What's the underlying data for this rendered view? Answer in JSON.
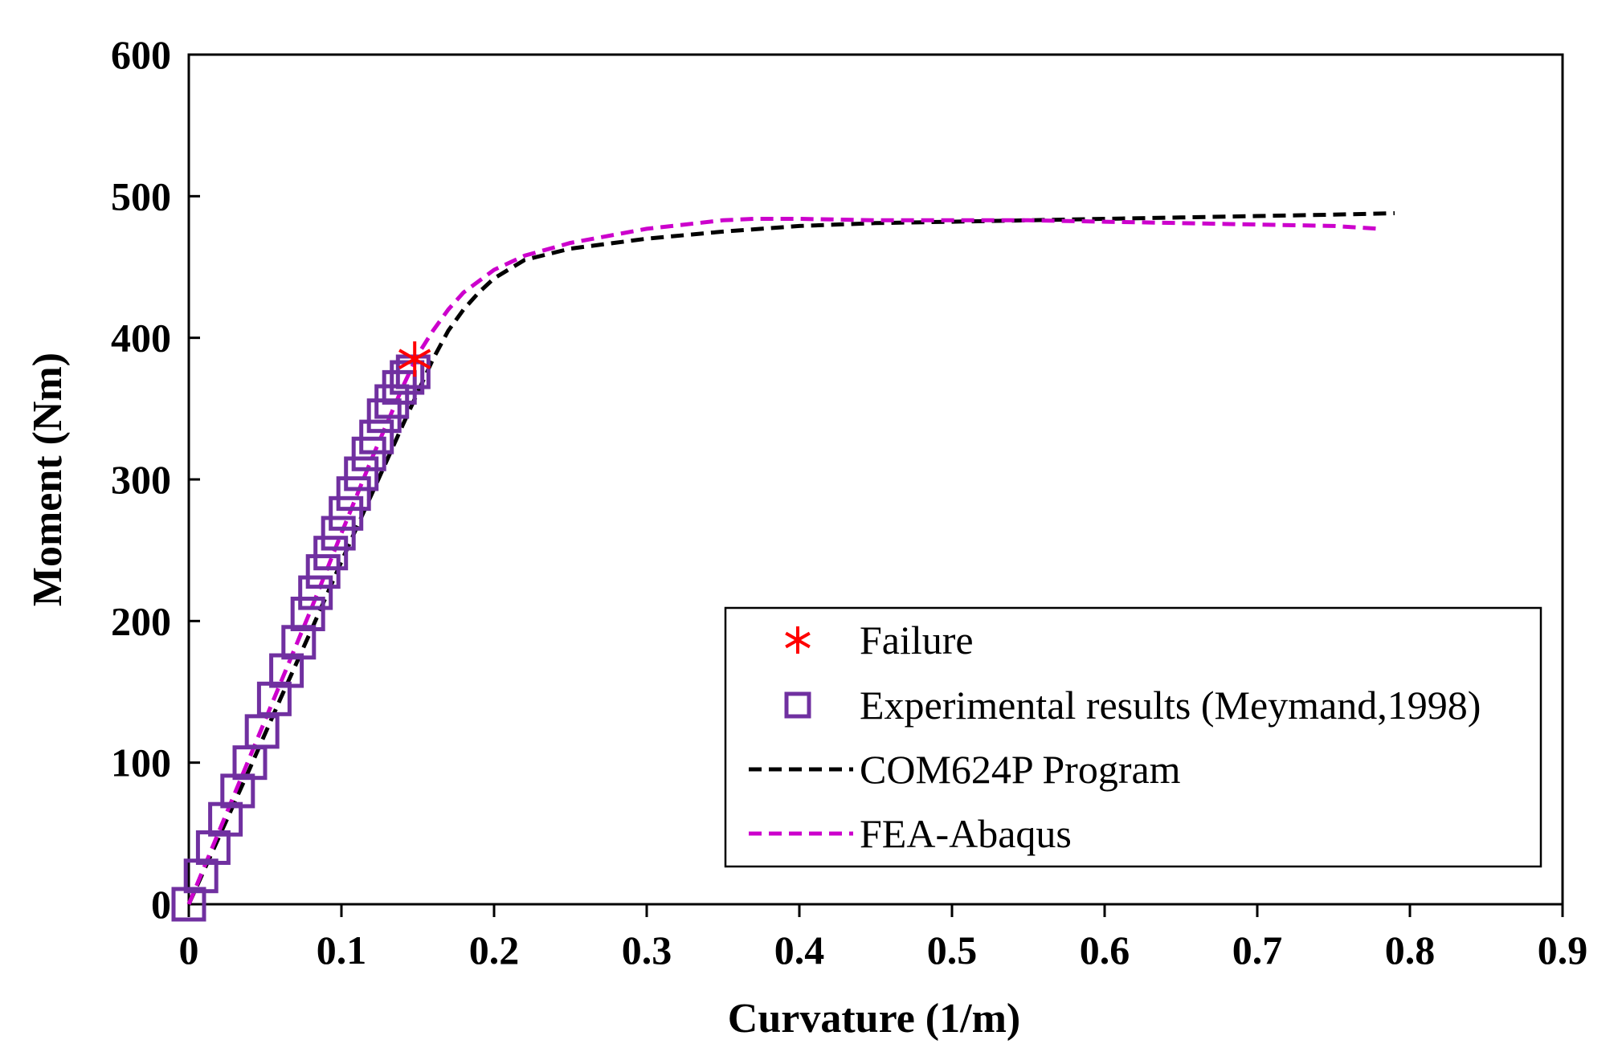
{
  "chart_data": {
    "type": "line",
    "xlabel": "Curvature  (1/m)",
    "ylabel": "Moment (Nm)",
    "xlim": [
      0,
      0.9
    ],
    "ylim": [
      0,
      600
    ],
    "xticks": [
      0,
      0.1,
      0.2,
      0.3,
      0.4,
      0.5,
      0.6,
      0.7,
      0.8,
      0.9
    ],
    "xtick_labels": [
      "0",
      "0.1",
      "0.2",
      "0.3",
      "0.4",
      "0.5",
      "0.6",
      "0.7",
      "0.8",
      "0.9"
    ],
    "yticks": [
      0,
      100,
      200,
      300,
      400,
      500,
      600
    ],
    "ytick_labels": [
      "0",
      "100",
      "200",
      "300",
      "400",
      "500",
      "600"
    ],
    "grid": false,
    "legend_position": "bottom-right",
    "series": [
      {
        "name": "Failure",
        "kind": "marker",
        "marker": "asterisk",
        "color": "#ff0000",
        "x": [
          0.148
        ],
        "y": [
          385
        ]
      },
      {
        "name": "Experimental results (Meymand,1998)",
        "kind": "marker",
        "marker": "square",
        "color": "#7030a0",
        "x": [
          0,
          0.008,
          0.016,
          0.024,
          0.032,
          0.04,
          0.048,
          0.056,
          0.064,
          0.072,
          0.078,
          0.083,
          0.088,
          0.093,
          0.098,
          0.103,
          0.108,
          0.113,
          0.118,
          0.123,
          0.128,
          0.133,
          0.138,
          0.143,
          0.147
        ],
        "y": [
          0,
          20,
          40,
          60,
          80,
          100,
          122,
          145,
          165,
          185,
          205,
          220,
          235,
          248,
          262,
          276,
          290,
          304,
          318,
          330,
          345,
          355,
          365,
          372,
          376
        ]
      },
      {
        "name": "COM624P Program",
        "kind": "line",
        "dash": "dashed",
        "color": "#000000",
        "x": [
          0,
          0.02,
          0.04,
          0.06,
          0.08,
          0.1,
          0.12,
          0.14,
          0.16,
          0.17,
          0.18,
          0.19,
          0.2,
          0.22,
          0.25,
          0.3,
          0.35,
          0.4,
          0.45,
          0.5,
          0.55,
          0.6,
          0.65,
          0.7,
          0.75,
          0.79
        ],
        "y": [
          0,
          48,
          96,
          145,
          193,
          242,
          290,
          338,
          385,
          405,
          420,
          432,
          442,
          455,
          463,
          470,
          475,
          479,
          481,
          482,
          483,
          484,
          485,
          486,
          487,
          488
        ]
      },
      {
        "name": "FEA-Abaqus",
        "kind": "line",
        "dash": "dashed",
        "color": "#cc00cc",
        "x": [
          0,
          0.02,
          0.04,
          0.06,
          0.08,
          0.1,
          0.12,
          0.14,
          0.15,
          0.16,
          0.17,
          0.18,
          0.2,
          0.22,
          0.25,
          0.3,
          0.35,
          0.37,
          0.4,
          0.45,
          0.5,
          0.55,
          0.6,
          0.65,
          0.7,
          0.75,
          0.78
        ],
        "y": [
          0,
          52,
          104,
          156,
          208,
          262,
          315,
          365,
          388,
          405,
          420,
          432,
          448,
          458,
          467,
          477,
          483,
          484,
          484,
          483,
          483,
          483,
          482,
          481,
          480,
          479,
          477
        ]
      }
    ]
  }
}
